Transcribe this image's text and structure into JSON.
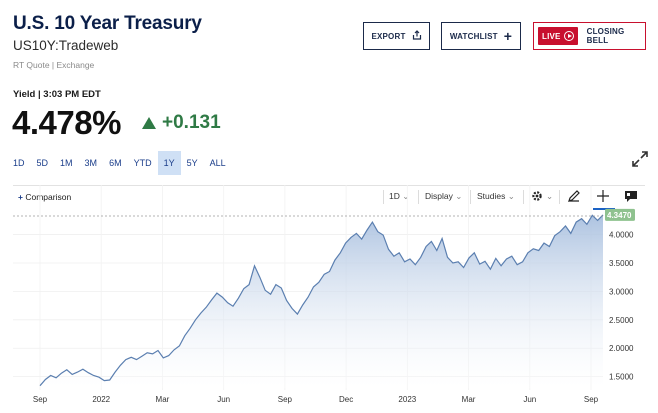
{
  "header": {
    "title": "U.S. 10 Year Treasury",
    "symbol": "US10Y:Tradeweb",
    "quote_source": "RT Quote | Exchange"
  },
  "actions": {
    "export_label": "EXPORT",
    "watchlist_label": "WATCHLIST",
    "watchlist_icon": "+",
    "live_label": "LIVE",
    "closing_bell_label": "CLOSING BELL"
  },
  "quote": {
    "yield_time": "Yield | 3:03 PM EDT",
    "price": "4.478%",
    "change": "+0.131",
    "direction": "up",
    "up_color": "#2f7a45"
  },
  "ranges": [
    {
      "label": "1D",
      "selected": false
    },
    {
      "label": "5D",
      "selected": false
    },
    {
      "label": "1M",
      "selected": false
    },
    {
      "label": "3M",
      "selected": false
    },
    {
      "label": "6M",
      "selected": false
    },
    {
      "label": "YTD",
      "selected": false
    },
    {
      "label": "1Y",
      "selected": true
    },
    {
      "label": "5Y",
      "selected": false
    },
    {
      "label": "ALL",
      "selected": false
    }
  ],
  "toolbar": {
    "comparison_label": "Comparison",
    "interval_label": "1D",
    "display_label": "Display",
    "studies_label": "Studies"
  },
  "chart_data": {
    "type": "area",
    "title": "",
    "xlabel": "",
    "ylabel": "",
    "x_tick_labels": [
      "Sep",
      "2022",
      "Mar",
      "Jun",
      "Sep",
      "Dec",
      "2023",
      "Mar",
      "Jun",
      "Sep"
    ],
    "y_tick_labels": [
      "4.0000",
      "3.5000",
      "3.0000",
      "2.5000",
      "2.0000",
      "1.5000"
    ],
    "y_ticks": [
      4.0,
      3.5,
      3.0,
      2.5,
      2.0,
      1.5
    ],
    "ylim": [
      1.3,
      4.45
    ],
    "last_value_label": "4.3470",
    "last_value": 4.347,
    "line_color": "#5b7fb0",
    "fill_top_color": "#a9c0df",
    "last_label_color": "#8fc28f",
    "series": [
      {
        "values": [
          1.34,
          1.45,
          1.52,
          1.48,
          1.56,
          1.62,
          1.54,
          1.58,
          1.63,
          1.57,
          1.52,
          1.49,
          1.43,
          1.44,
          1.58,
          1.7,
          1.8,
          1.84,
          1.8,
          1.86,
          1.92,
          1.9,
          1.96,
          1.83,
          1.87,
          1.97,
          2.04,
          2.22,
          2.35,
          2.5,
          2.62,
          2.72,
          2.85,
          2.97,
          2.9,
          2.8,
          2.74,
          2.88,
          3.05,
          3.12,
          3.45,
          3.25,
          3.02,
          2.95,
          3.12,
          3.06,
          2.84,
          2.7,
          2.6,
          2.76,
          2.9,
          3.08,
          3.16,
          3.3,
          3.35,
          3.55,
          3.68,
          3.85,
          3.95,
          4.02,
          3.92,
          4.08,
          4.22,
          4.05,
          3.99,
          3.74,
          3.62,
          3.68,
          3.52,
          3.57,
          3.47,
          3.6,
          3.79,
          3.88,
          3.72,
          3.93,
          3.6,
          3.5,
          3.52,
          3.42,
          3.59,
          3.68,
          3.48,
          3.53,
          3.39,
          3.58,
          3.45,
          3.57,
          3.62,
          3.47,
          3.52,
          3.68,
          3.75,
          3.72,
          3.85,
          3.79,
          3.98,
          4.05,
          4.15,
          4.02,
          4.22,
          4.28,
          4.18,
          4.34,
          4.25,
          4.347
        ]
      }
    ]
  }
}
